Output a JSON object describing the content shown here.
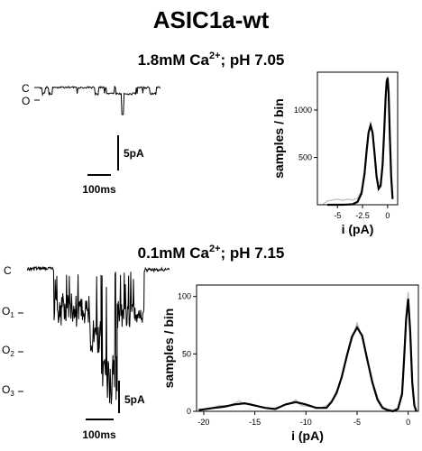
{
  "figure": {
    "title": "ASIC1a-wt",
    "panels": [
      {
        "id": "top",
        "condition_prefix": "1.8mM Ca",
        "condition_sup": "2+",
        "condition_suffix": "; pH 7.05",
        "state_labels": [
          {
            "main": "C",
            "sub": ""
          },
          {
            "main": "O",
            "sub": ""
          }
        ],
        "scale_current": "5pA",
        "scale_time": "100ms"
      },
      {
        "id": "bottom",
        "condition_prefix": "0.1mM Ca",
        "condition_sup": "2+",
        "condition_suffix": "; pH 7.15",
        "state_labels": [
          {
            "main": "C",
            "sub": ""
          },
          {
            "main": "O",
            "sub": "1"
          },
          {
            "main": "O",
            "sub": "2"
          },
          {
            "main": "O",
            "sub": "3"
          }
        ],
        "scale_current": "5pA",
        "scale_time": "100ms"
      }
    ]
  },
  "colors": {
    "fit": "#000000",
    "raw": "#b8b8b8",
    "trace": "#000000"
  },
  "chart_data": [
    {
      "type": "line",
      "panel": "top",
      "xlabel": "i (pA)",
      "ylabel": "samples / bin",
      "xlim": [
        -7,
        1
      ],
      "ylim": [
        0,
        1400
      ],
      "xticks": [
        -5,
        -2.5,
        0
      ],
      "xtick_labels": [
        "-5",
        "-2.5",
        "0"
      ],
      "yticks": [
        500,
        1000
      ],
      "ytick_labels": [
        "500",
        "1000"
      ],
      "grid": false,
      "series": [
        {
          "style": "fit",
          "x": [
            -6,
            -4.5,
            -3.5,
            -3,
            -2.6,
            -2.3,
            -2.1,
            -1.9,
            -1.7,
            -1.5,
            -1.3,
            -1.1,
            -0.9,
            -0.7,
            -0.5,
            -0.35,
            -0.2,
            -0.1,
            0,
            0.1,
            0.2,
            0.35,
            0.5
          ],
          "y": [
            0,
            0,
            5,
            30,
            120,
            330,
            560,
            760,
            840,
            760,
            540,
            300,
            170,
            200,
            420,
            760,
            1120,
            1300,
            1340,
            1180,
            800,
            300,
            60
          ]
        },
        {
          "style": "raw",
          "x": [
            -6.5,
            -6,
            -5,
            -4.5,
            -4,
            -3.5,
            -3,
            -2.6,
            -2.3,
            -2.1,
            -1.9,
            -1.7,
            -1.5,
            -1.3,
            -1.1,
            -0.9,
            -0.7,
            -0.5,
            -0.35,
            -0.2,
            -0.1,
            0,
            0.1,
            0.2,
            0.35,
            0.5
          ],
          "y": [
            0,
            40,
            60,
            45,
            60,
            50,
            70,
            150,
            360,
            580,
            780,
            850,
            740,
            520,
            290,
            180,
            220,
            430,
            780,
            1100,
            1310,
            1360,
            1150,
            820,
            320,
            80
          ]
        }
      ]
    },
    {
      "type": "line",
      "panel": "bottom",
      "xlabel": "i (pA)",
      "ylabel": "samples / bin",
      "xlim": [
        -20.7,
        1
      ],
      "ylim": [
        0,
        110
      ],
      "xticks": [
        -20,
        -15,
        -10,
        -5,
        0
      ],
      "xtick_labels": [
        "-20",
        "-15",
        "-10",
        "-5",
        "0"
      ],
      "yticks": [
        0,
        50,
        100
      ],
      "ytick_labels": [
        "0",
        "50",
        "100"
      ],
      "grid": false,
      "series": [
        {
          "style": "fit",
          "x": [
            -20.5,
            -19,
            -18,
            -17,
            -16,
            -15,
            -14,
            -13,
            -12,
            -11,
            -10,
            -9,
            -8,
            -7.5,
            -7,
            -6.5,
            -6,
            -5.5,
            -5,
            -4.5,
            -4,
            -3.5,
            -3,
            -2.5,
            -2,
            -1.5,
            -1,
            -0.6,
            -0.4,
            -0.2,
            0,
            0.2,
            0.4,
            0.6,
            0.8
          ],
          "y": [
            1,
            3,
            4,
            6,
            7,
            5,
            3,
            2,
            6,
            8,
            6,
            3,
            3,
            8,
            16,
            30,
            48,
            65,
            73,
            66,
            45,
            25,
            10,
            3,
            1,
            0,
            2,
            15,
            45,
            80,
            98,
            70,
            25,
            5,
            0
          ]
        },
        {
          "style": "raw",
          "x": [
            -20.5,
            -19.5,
            -18.5,
            -17.5,
            -16.5,
            -16,
            -15.5,
            -14.5,
            -13.5,
            -12.5,
            -11.5,
            -11,
            -10.5,
            -9.5,
            -8.5,
            -8,
            -7.5,
            -7,
            -6.5,
            -6,
            -5.5,
            -5,
            -4.5,
            -4,
            -3.5,
            -3,
            -2.5,
            -2,
            -1.5,
            -1,
            -0.6,
            -0.4,
            -0.2,
            0,
            0.2,
            0.4,
            0.6,
            0.8
          ],
          "y": [
            2,
            2,
            5,
            5,
            9,
            6,
            7,
            4,
            2,
            4,
            7,
            10,
            5,
            4,
            3,
            5,
            9,
            18,
            28,
            50,
            62,
            77,
            64,
            46,
            27,
            12,
            4,
            2,
            1,
            3,
            18,
            50,
            85,
            104,
            72,
            28,
            6,
            1
          ]
        }
      ]
    }
  ]
}
